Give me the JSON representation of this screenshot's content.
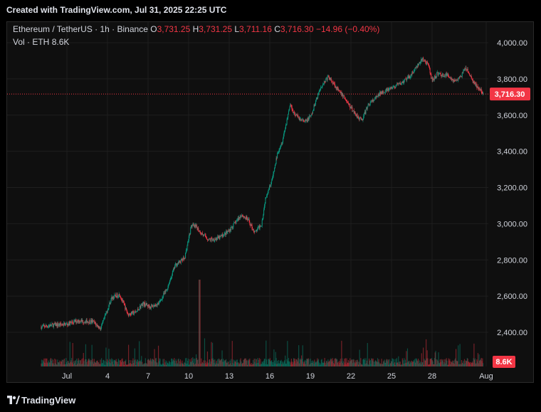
{
  "header": {
    "text": "Created with TradingView.com, Jul 31, 2025 22:25 UTC"
  },
  "footer": {
    "brand": "TradingView"
  },
  "legend": {
    "symbol": "Ethereum / TetherUS · 1h · Binance",
    "o_label": "O",
    "o_value": "3,731.25",
    "h_label": "H",
    "h_value": "3,731.25",
    "l_label": "L",
    "l_value": "3,711.16",
    "c_label": "C",
    "c_value": "3,716.30",
    "change": "−14.96 (−0.40%)",
    "vol_label": "Vol · ETH",
    "vol_value": "8.6K"
  },
  "colors": {
    "up": "#089981",
    "down": "#f23645",
    "background": "#0f0f0f",
    "grid": "#1e1e1e"
  },
  "chart_data": {
    "type": "candlestick",
    "ylim": [
      2300,
      4050
    ],
    "y_ticks": [
      "4,000.00",
      "3,800.00",
      "3,600.00",
      "3,400.00",
      "3,200.00",
      "3,000.00",
      "2,800.00",
      "2,600.00",
      "2,400.00"
    ],
    "y_tick_values": [
      4000,
      3800,
      3600,
      3400,
      3200,
      3000,
      2800,
      2600,
      2400
    ],
    "x_ticks": [
      "Jul",
      "4",
      "7",
      "10",
      "13",
      "16",
      "19",
      "22",
      "25",
      "28",
      "Aug"
    ],
    "x_tick_days": [
      1,
      4,
      7,
      10,
      13,
      16,
      19,
      22,
      25,
      28,
      32
    ],
    "current_price": 3716.3,
    "current_price_label": "3,716.30",
    "volume_label": "8.6K",
    "price_path_days": [
      -0.9,
      0.0,
      1.0,
      1.8,
      2.3,
      2.9,
      3.5,
      4.3,
      4.9,
      5.5,
      6.1,
      6.6,
      7.2,
      7.8,
      8.4,
      9.0,
      9.7,
      10.2,
      10.6,
      10.9,
      11.5,
      12.2,
      12.9,
      13.4,
      13.9,
      14.4,
      14.9,
      15.4,
      15.7,
      16.2,
      16.6,
      16.9,
      17.2,
      17.5,
      17.8,
      18.2,
      18.6,
      19.1,
      19.4,
      19.8,
      20.3,
      20.7,
      21.1,
      21.5,
      21.9,
      22.3,
      22.8,
      23.3,
      23.8,
      24.3,
      24.8,
      25.3,
      25.8,
      26.3,
      26.8,
      27.3,
      27.7,
      28.0,
      28.4,
      28.8,
      29.2,
      29.6,
      30.0,
      30.5,
      31.0,
      31.4,
      31.8
    ],
    "price_path_values": [
      2430,
      2440,
      2445,
      2465,
      2460,
      2460,
      2420,
      2590,
      2610,
      2500,
      2510,
      2560,
      2540,
      2560,
      2640,
      2770,
      2810,
      2990,
      2980,
      2950,
      2910,
      2920,
      2955,
      3000,
      3050,
      3020,
      2950,
      3000,
      3150,
      3250,
      3400,
      3450,
      3550,
      3660,
      3610,
      3580,
      3560,
      3600,
      3680,
      3760,
      3810,
      3780,
      3730,
      3700,
      3650,
      3610,
      3570,
      3660,
      3690,
      3730,
      3740,
      3760,
      3780,
      3810,
      3860,
      3910,
      3880,
      3790,
      3830,
      3820,
      3820,
      3790,
      3800,
      3860,
      3790,
      3750,
      3716
    ]
  }
}
